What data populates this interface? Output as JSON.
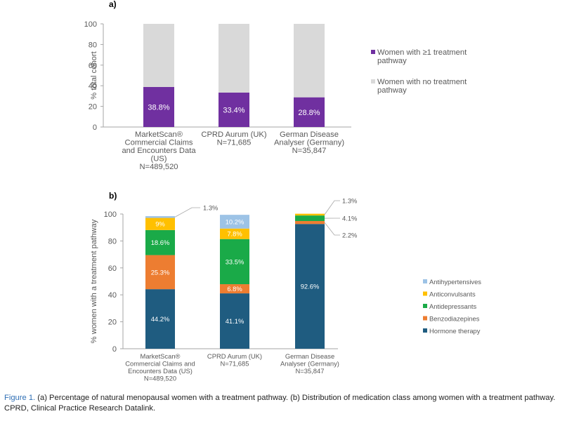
{
  "chart_data": [
    {
      "type": "bar",
      "panel_label": "a)",
      "stacked": true,
      "ylabel": "% total cohort",
      "ylim": [
        0,
        100
      ],
      "yticks": [
        0,
        20,
        40,
        60,
        80,
        100
      ],
      "grid": false,
      "legend_position": "right",
      "categories": [
        [
          "MarketScan®",
          "Commercial Claims",
          "and Encounters Data",
          "(US)",
          "N=489,520"
        ],
        [
          "CPRD Aurum (UK)",
          "N=71,685"
        ],
        [
          "German Disease",
          "Analyser (Germany)",
          "N=35,847"
        ]
      ],
      "series": [
        {
          "name": [
            "Women with ≥1 treatment",
            "pathway"
          ],
          "color": "#7030a0",
          "values": [
            38.8,
            33.4,
            28.8
          ],
          "labels": [
            "38.8%",
            "33.4%",
            "28.8%"
          ]
        },
        {
          "name": [
            "Women with no treatment",
            "pathway"
          ],
          "color": "#d9d9d9",
          "values": [
            61.2,
            66.6,
            71.2
          ]
        }
      ]
    },
    {
      "type": "bar",
      "panel_label": "b)",
      "stacked": true,
      "ylabel": "% women with a treatment pathway",
      "ylim": [
        0,
        100
      ],
      "yticks": [
        0,
        20,
        40,
        60,
        80,
        100
      ],
      "grid": false,
      "legend_position": "right",
      "categories": [
        [
          "MarketScan®",
          "Commercial Claims and",
          "Encounters Data (US)",
          "N=489,520"
        ],
        [
          "CPRD Aurum (UK)",
          "N=71,685"
        ],
        [
          "German Disease",
          "Analyser (Germany)",
          "N=35,847"
        ]
      ],
      "series": [
        {
          "name": "Hormone therapy",
          "color": "#1f5c80",
          "values": [
            44.2,
            41.1,
            92.6
          ],
          "labels": [
            "44.2%",
            "41.1%",
            "92.6%"
          ]
        },
        {
          "name": "Benzodiazepines",
          "color": "#ed7d31",
          "values": [
            25.3,
            6.8,
            2.2
          ],
          "labels": [
            "25.3%",
            "6.8%",
            "2.2%"
          ]
        },
        {
          "name": "Antidepressants",
          "color": "#1aaa48",
          "values": [
            18.6,
            33.5,
            4.1
          ],
          "labels": [
            "18.6%",
            "33.5%",
            "4.1%"
          ]
        },
        {
          "name": "Anticonvulsants",
          "color": "#ffc000",
          "values": [
            9.0,
            7.8,
            1.3
          ],
          "labels": [
            "9%",
            "7.8%",
            "1.3%"
          ]
        },
        {
          "name": "Antihypertensives",
          "color": "#9dc3e6",
          "values": [
            1.3,
            10.2,
            0
          ],
          "labels": [
            "1.3%",
            "10.2%",
            ""
          ]
        }
      ]
    }
  ],
  "caption": {
    "label": "Figure 1.",
    "text": " (a) Percentage of natural menopausal women with a treatment pathway. (b) Distribution of medication class among women with a treatment pathway. CPRD, Clinical Practice Research Datalink."
  }
}
